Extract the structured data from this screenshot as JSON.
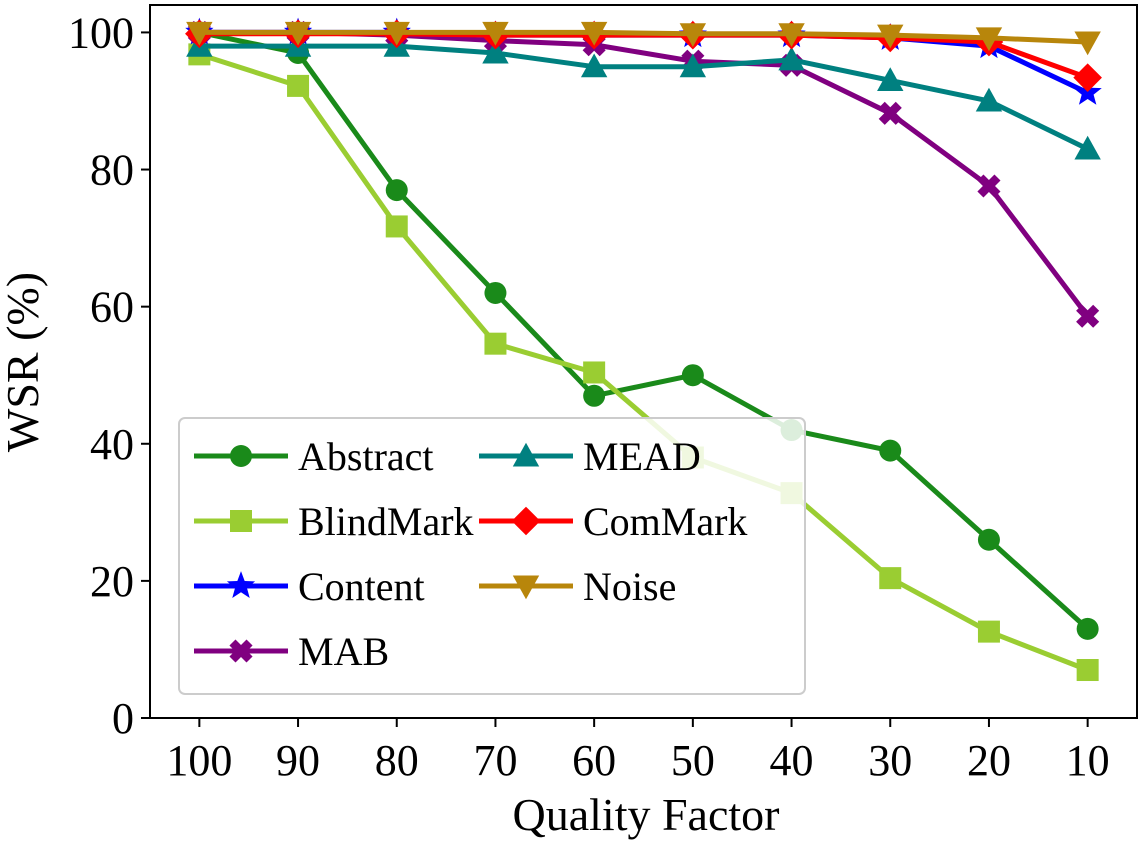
{
  "chart_data": {
    "type": "line",
    "title": "",
    "xlabel": "Quality Factor",
    "ylabel": "WSR (%)",
    "categories": [
      "100",
      "90",
      "80",
      "70",
      "60",
      "50",
      "40",
      "30",
      "20",
      "10"
    ],
    "ylim": [
      0,
      104
    ],
    "yticks": [
      0,
      20,
      40,
      60,
      80,
      100
    ],
    "grid": false,
    "legend_position": "lower-left",
    "legend_columns": 2,
    "series": [
      {
        "name": "Abstract",
        "color": "#1a8a1a",
        "marker": "circle",
        "values": [
          100,
          97,
          77,
          62,
          47,
          50,
          42,
          39,
          26,
          13
        ]
      },
      {
        "name": "BlindMark",
        "color": "#9acd32",
        "marker": "square",
        "values": [
          96.8,
          92.2,
          71.7,
          54.6,
          50.4,
          38,
          32.8,
          20.4,
          12.6,
          7
        ]
      },
      {
        "name": "Content",
        "color": "#0000ff",
        "marker": "star",
        "values": [
          100,
          100,
          100,
          99.6,
          99.6,
          99.6,
          99.6,
          99.2,
          98,
          91.2
        ]
      },
      {
        "name": "MAB",
        "color": "#800080",
        "marker": "x",
        "values": [
          100,
          100,
          99.6,
          98.8,
          98.2,
          95.8,
          95.2,
          88.2,
          77.6,
          58.6
        ]
      },
      {
        "name": "MEAD",
        "color": "#008080",
        "marker": "triangle-up",
        "values": [
          98,
          98,
          98,
          97,
          95,
          95,
          96,
          93,
          90,
          83
        ]
      },
      {
        "name": "ComMark",
        "color": "#ff0000",
        "marker": "diamond",
        "values": [
          99.8,
          99.8,
          99.8,
          99.6,
          99.6,
          99.6,
          99.6,
          99.2,
          98.6,
          93.4
        ]
      },
      {
        "name": "Noise",
        "color": "#b8860b",
        "marker": "triangle-down",
        "values": [
          100,
          100,
          100,
          100,
          100,
          99.8,
          99.8,
          99.6,
          99.2,
          98.6
        ]
      }
    ]
  }
}
